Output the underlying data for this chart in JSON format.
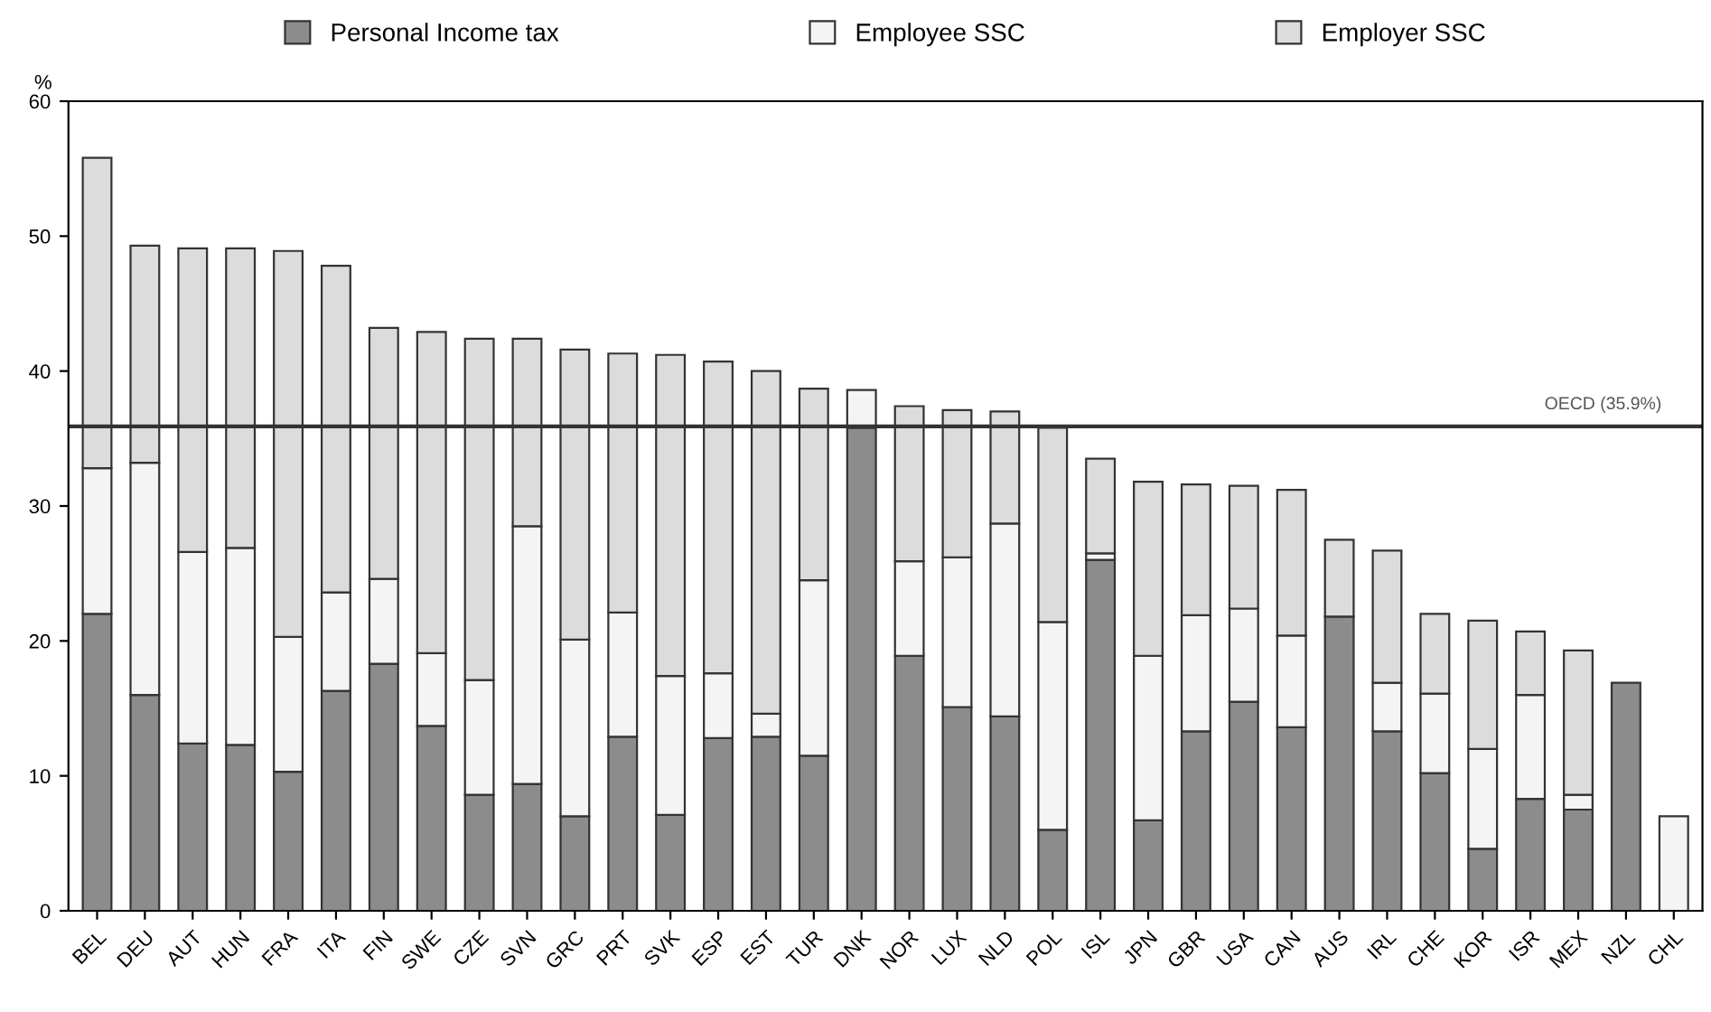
{
  "chart_data": {
    "type": "bar",
    "stacked": true,
    "ylabel": "%",
    "categories": [
      "BEL",
      "DEU",
      "AUT",
      "HUN",
      "FRA",
      "ITA",
      "FIN",
      "SWE",
      "CZE",
      "SVN",
      "GRC",
      "PRT",
      "SVK",
      "ESP",
      "EST",
      "TUR",
      "DNK",
      "NOR",
      "LUX",
      "NLD",
      "POL",
      "ISL",
      "JPN",
      "GBR",
      "USA",
      "CAN",
      "AUS",
      "IRL",
      "CHE",
      "KOR",
      "ISR",
      "MEX",
      "NZL",
      "CHL"
    ],
    "series": [
      {
        "name": "Personal Income tax",
        "color": "#8c8c8c",
        "values": [
          22.0,
          16.0,
          12.4,
          12.3,
          10.3,
          16.3,
          18.3,
          13.7,
          8.6,
          9.4,
          7.0,
          12.9,
          7.1,
          12.8,
          12.9,
          11.5,
          35.8,
          18.9,
          15.1,
          14.4,
          6.0,
          26.0,
          6.7,
          13.3,
          15.5,
          13.6,
          21.8,
          13.3,
          10.2,
          4.6,
          8.3,
          7.5,
          16.9,
          0
        ]
      },
      {
        "name": "Employee SSC",
        "color": "#f4f4f4",
        "values": [
          10.8,
          17.2,
          14.2,
          14.6,
          10.0,
          7.3,
          6.3,
          5.4,
          8.5,
          19.1,
          13.1,
          9.2,
          10.3,
          4.8,
          1.7,
          13.0,
          2.8,
          7.0,
          11.1,
          14.3,
          15.4,
          0.5,
          12.2,
          8.6,
          6.9,
          6.8,
          0,
          3.6,
          5.9,
          7.4,
          7.7,
          1.1,
          0,
          7.0
        ]
      },
      {
        "name": "Employer SSC",
        "color": "#dcdcdc",
        "values": [
          23.0,
          16.1,
          22.5,
          22.2,
          28.6,
          24.2,
          18.6,
          23.8,
          25.3,
          13.9,
          21.5,
          19.2,
          23.8,
          23.1,
          25.4,
          14.2,
          0,
          11.5,
          10.9,
          8.3,
          14.4,
          7.0,
          12.9,
          9.7,
          9.1,
          10.8,
          5.7,
          9.8,
          5.9,
          9.5,
          4.7,
          10.7,
          0,
          0
        ]
      }
    ],
    "ylim": [
      0,
      60
    ],
    "yticks": [
      0,
      10,
      20,
      30,
      40,
      50,
      60
    ],
    "ref_lines": [
      {
        "axis": "y",
        "value": 35.9,
        "label": "OECD (35.9%)",
        "color": "#333333",
        "line_style": "solid"
      }
    ],
    "legend": "top",
    "grid": false
  }
}
